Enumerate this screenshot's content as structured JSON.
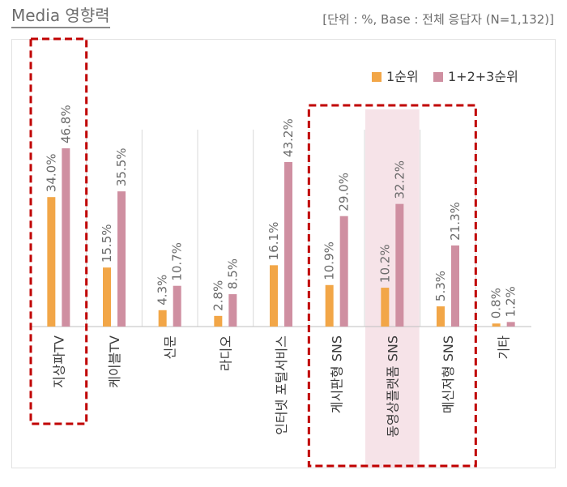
{
  "header": {
    "title": "Media 영향력",
    "note": "[단위 : %, Base : 전체 응답자 (N=1,132)]"
  },
  "colors": {
    "rank1": "#f2a647",
    "rank123": "#cf8fa1",
    "highlight_band": "#f6e3e8",
    "dashed_box": "#c00000",
    "gridline": "#d9d9d9"
  },
  "chart_data": {
    "type": "bar",
    "title": "Media 영향력",
    "categories": [
      "지상파TV",
      "케이블TV",
      "신문",
      "라디오",
      "인터넷 포털서비스",
      "게시판형 SNS",
      "동영상플랫폼 SNS",
      "메신저형 SNS",
      "기타"
    ],
    "series": [
      {
        "name": "1순위",
        "values": [
          34.0,
          15.5,
          4.3,
          2.8,
          16.1,
          10.9,
          10.2,
          5.3,
          0.8
        ]
      },
      {
        "name": "1+2+3순위",
        "values": [
          46.8,
          35.5,
          10.7,
          8.5,
          43.2,
          29.0,
          32.2,
          21.3,
          1.2
        ]
      }
    ],
    "value_labels": {
      "1순위": [
        "34.0%",
        "15.5%",
        "4.3%",
        "2.8%",
        "16.1%",
        "10.9%",
        "10.2%",
        "5.3%",
        "0.8%"
      ],
      "1+2+3순위": [
        "46.8%",
        "35.5%",
        "10.7%",
        "8.5%",
        "43.2%",
        "29.0%",
        "32.2%",
        "21.3%",
        "1.2%"
      ]
    },
    "ylim": [
      0,
      50
    ],
    "legend_position": "top-right",
    "grid": "vertical separators",
    "highlighted_categories": [
      "지상파TV",
      "게시판형 SNS",
      "동영상플랫폼 SNS",
      "메신저형 SNS"
    ],
    "shaded_category": "동영상플랫폼 SNS"
  }
}
